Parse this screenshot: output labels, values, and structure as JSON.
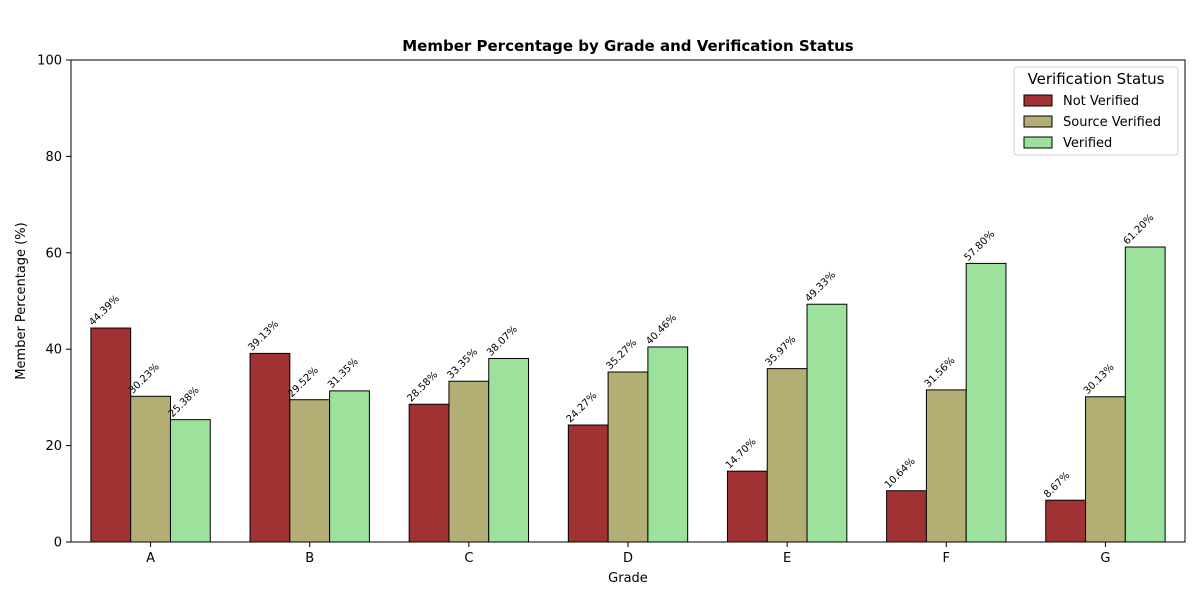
{
  "chart_data": {
    "type": "bar",
    "title": "Member Percentage by Grade and Verification Status",
    "xlabel": "Grade",
    "ylabel": "Member Percentage (%)",
    "categories": [
      "A",
      "B",
      "C",
      "D",
      "E",
      "F",
      "G"
    ],
    "ylim": [
      0,
      100
    ],
    "yticks": [
      0,
      20,
      40,
      60,
      80,
      100
    ],
    "grid": false,
    "legend": {
      "title": "Verification Status",
      "placement": "top-right"
    },
    "series": [
      {
        "name": "Not Verified",
        "color": "#a03234",
        "values": [
          44.39,
          39.13,
          28.58,
          24.27,
          14.7,
          10.64,
          8.67
        ],
        "labels": [
          "44.39%",
          "39.13%",
          "28.58%",
          "24.27%",
          "14.70%",
          "10.64%",
          "8.67%"
        ]
      },
      {
        "name": "Source Verified",
        "color": "#b2ae74",
        "values": [
          30.23,
          29.52,
          33.35,
          35.27,
          35.97,
          31.56,
          30.13
        ],
        "labels": [
          "30.23%",
          "29.52%",
          "33.35%",
          "35.27%",
          "35.97%",
          "31.56%",
          "30.13%"
        ]
      },
      {
        "name": "Verified",
        "color": "#9ce29c",
        "values": [
          25.38,
          31.35,
          38.07,
          40.46,
          49.33,
          57.8,
          61.2
        ],
        "labels": [
          "25.38%",
          "31.35%",
          "38.07%",
          "40.46%",
          "49.33%",
          "57.80%",
          "61.20%"
        ]
      }
    ]
  }
}
